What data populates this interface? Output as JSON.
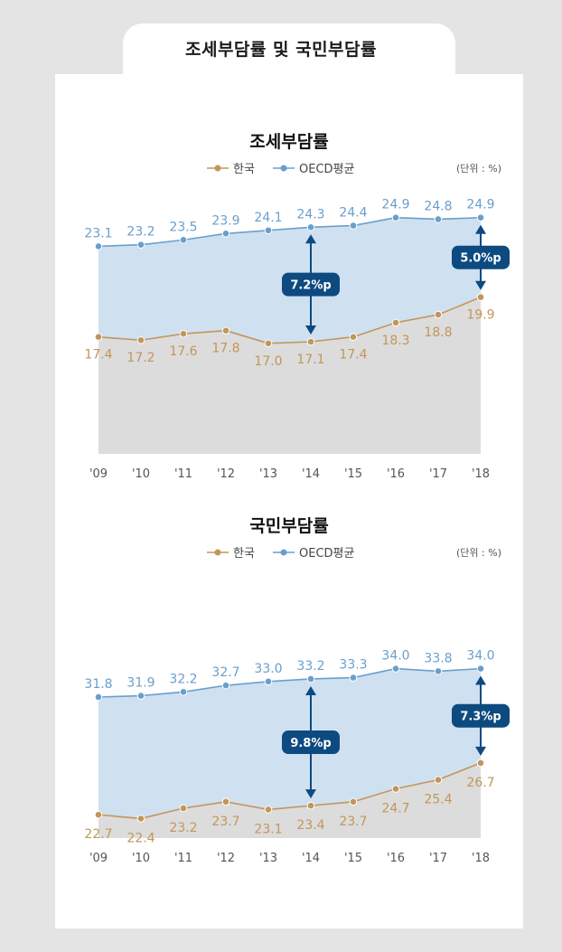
{
  "header": {
    "title": "조세부담률  및  국민부담률"
  },
  "legend": {
    "korea": "한국",
    "oecd": "OECD평균"
  },
  "unit": "(단위 : %)",
  "colors": {
    "korea": "#c2965a",
    "oecd": "#6a9fcc",
    "oecd_fill": "#cfe0f0",
    "korea_fill": "#dcdcdc",
    "arrow": "#0d4a80"
  },
  "chart_data": [
    {
      "type": "area",
      "title": "조세부담률",
      "categories": [
        "'09",
        "'10",
        "'11",
        "'12",
        "'13",
        "'14",
        "'15",
        "'16",
        "'17",
        "'18"
      ],
      "series": [
        {
          "name": "OECD평균",
          "values": [
            23.1,
            23.2,
            23.5,
            23.9,
            24.1,
            24.3,
            24.4,
            24.9,
            24.8,
            24.9
          ]
        },
        {
          "name": "한국",
          "values": [
            17.4,
            17.2,
            17.6,
            17.8,
            17.0,
            17.1,
            17.4,
            18.3,
            18.8,
            19.9
          ]
        }
      ],
      "annotations": [
        {
          "category": "'14",
          "label": "7.2%p"
        },
        {
          "category": "'18",
          "label": "5.0%p"
        }
      ]
    },
    {
      "type": "area",
      "title": "국민부담률",
      "categories": [
        "'09",
        "'10",
        "'11",
        "'12",
        "'13",
        "'14",
        "'15",
        "'16",
        "'17",
        "'18"
      ],
      "series": [
        {
          "name": "OECD평균",
          "values": [
            31.8,
            31.9,
            32.2,
            32.7,
            33.0,
            33.2,
            33.3,
            34.0,
            33.8,
            34.0
          ]
        },
        {
          "name": "한국",
          "values": [
            22.7,
            22.4,
            23.2,
            23.7,
            23.1,
            23.4,
            23.7,
            24.7,
            25.4,
            26.7
          ]
        }
      ],
      "annotations": [
        {
          "category": "'14",
          "label": "9.8%p"
        },
        {
          "category": "'18",
          "label": "7.3%p"
        }
      ]
    }
  ]
}
